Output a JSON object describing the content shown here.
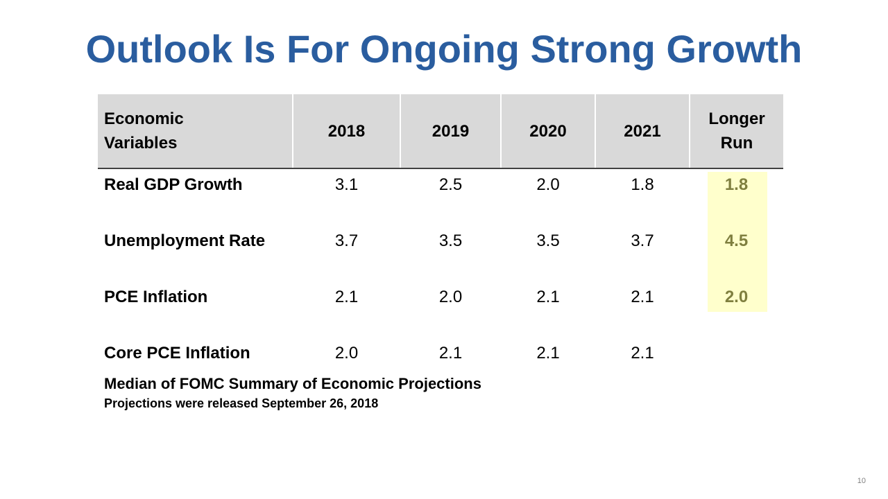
{
  "title": "Outlook Is For Ongoing Strong Growth",
  "table": {
    "headers": {
      "variable": [
        "Economic",
        "Variables"
      ],
      "years": [
        "2018",
        "2019",
        "2020",
        "2021"
      ],
      "longer_run": [
        "Longer",
        "Run"
      ]
    },
    "rows": [
      {
        "label": "Real GDP Growth",
        "values": [
          "3.1",
          "2.5",
          "2.0",
          "1.8"
        ],
        "longer_run": "1.8"
      },
      {
        "label": "Unemployment Rate",
        "values": [
          "3.7",
          "3.5",
          "3.5",
          "3.7"
        ],
        "longer_run": "4.5"
      },
      {
        "label": "PCE Inflation",
        "values": [
          "2.1",
          "2.0",
          "2.1",
          "2.1"
        ],
        "longer_run": "2.0"
      },
      {
        "label": "Core PCE Inflation",
        "values": [
          "2.0",
          "2.1",
          "2.1",
          "2.1"
        ],
        "longer_run": ""
      }
    ],
    "colors": {
      "header_bg": "#d9d9d9",
      "longer_run_highlight": "#ffffcc",
      "longer_run_text": "#7f7f3f"
    }
  },
  "notes": {
    "line1": "Median of FOMC Summary of Economic Projections",
    "line2": "Projections were released September 26, 2018"
  },
  "page_number": "10",
  "colors": {
    "title": "#2a5d9f"
  }
}
